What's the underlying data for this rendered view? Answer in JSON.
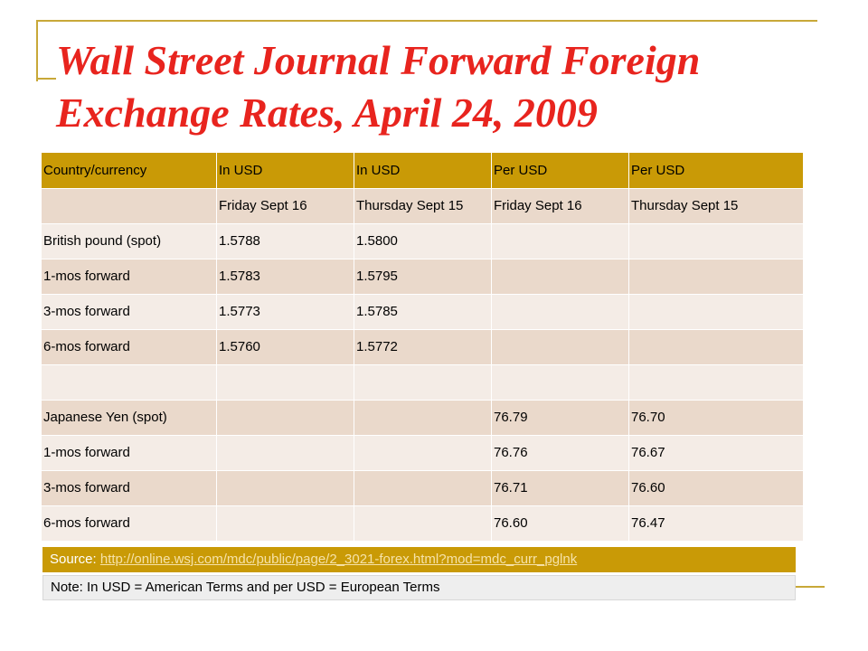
{
  "slide": {
    "title": "Wall Street Journal Forward Foreign Exchange Rates, April 24, 2009",
    "accent_color": "#e8241e",
    "table_header_color": "#c99a06"
  },
  "table": {
    "headers": [
      "Country/currency",
      "In USD",
      "In USD",
      "Per USD",
      "Per USD"
    ],
    "rows": [
      [
        "",
        "Friday  Sept 16",
        "Thursday Sept 15",
        "Friday Sept 16",
        "Thursday Sept 15"
      ],
      [
        "British pound (spot)",
        "1.5788",
        "1.5800",
        "",
        ""
      ],
      [
        "1-mos forward",
        "1.5783",
        "1.5795",
        "",
        ""
      ],
      [
        "3-mos forward",
        "1.5773",
        "1.5785",
        "",
        ""
      ],
      [
        "6-mos forward",
        "1.5760",
        "1.5772",
        "",
        ""
      ],
      [
        "",
        "",
        "",
        "",
        ""
      ],
      [
        "Japanese Yen (spot)",
        "",
        "",
        "76.79",
        "76.70"
      ],
      [
        "1-mos forward",
        "",
        "",
        "76.76",
        "76.67"
      ],
      [
        "3-mos forward",
        "",
        "",
        "76.71",
        "76.60"
      ],
      [
        "6-mos forward",
        "",
        "",
        "76.60",
        "76.47"
      ]
    ]
  },
  "source": {
    "label": "Source: ",
    "link_text": "http://online.wsj.com/mdc/public/page/2_3021-forex.html?mod=mdc_curr_pglnk"
  },
  "note": {
    "text": "Note: In USD = American Terms and  per USD = European Terms"
  }
}
